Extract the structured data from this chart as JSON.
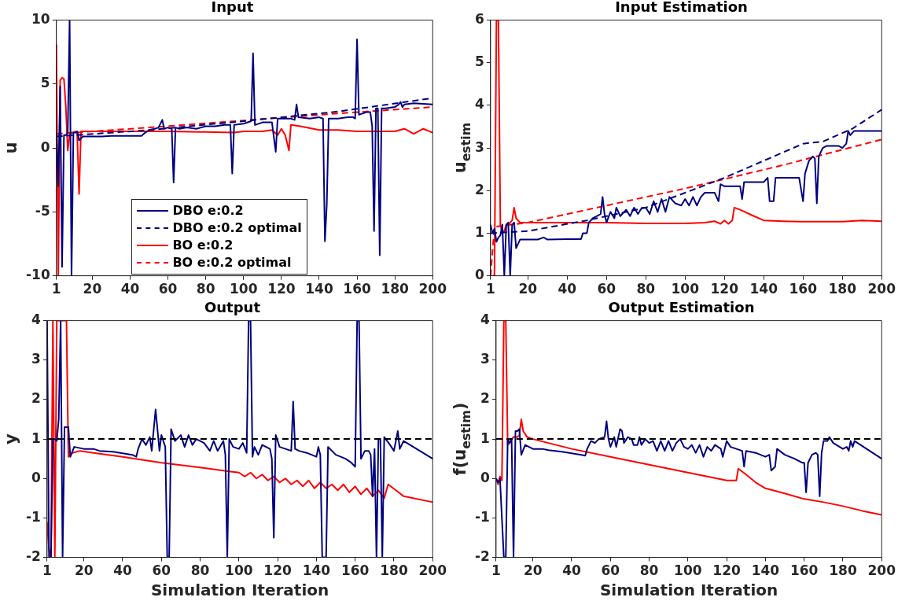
{
  "chart_data": [
    {
      "type": "line",
      "title": "Input",
      "ylabel": "u",
      "xlim": [
        1,
        200
      ],
      "xticks": [
        1,
        20,
        40,
        60,
        80,
        100,
        120,
        140,
        160,
        180,
        200
      ],
      "ylim": [
        -10,
        10
      ],
      "yticks": [
        -10,
        -5,
        0,
        5,
        10
      ],
      "legend": "bottom left",
      "series": [
        {
          "name": "DBO e:0.2",
          "color": "#000080",
          "x": [
            1,
            2,
            3,
            4,
            5,
            6,
            7,
            8,
            9,
            10,
            11,
            12,
            13,
            15,
            20,
            25,
            30,
            40,
            46,
            48,
            50,
            53,
            55,
            57,
            58,
            60,
            62,
            63,
            64,
            66,
            70,
            75,
            80,
            85,
            90,
            93,
            94,
            95,
            100,
            104,
            105,
            106,
            110,
            115,
            117,
            118,
            125,
            127,
            128,
            129,
            135,
            140,
            142,
            143,
            144,
            145,
            150,
            155,
            158,
            159,
            160,
            161,
            165,
            167,
            168,
            169,
            170,
            171,
            172,
            173,
            175,
            180,
            182,
            183,
            184,
            185,
            190,
            200
          ],
          "values": [
            1.2,
            -3,
            4.8,
            -9.3,
            1,
            1,
            1.2,
            10,
            -10,
            1.2,
            1.2,
            1.3,
            0.6,
            0.9,
            0.9,
            0.9,
            0.95,
            0.95,
            0.95,
            1.2,
            1.4,
            1.5,
            1.6,
            2.2,
            1.5,
            1.6,
            1.5,
            -2.7,
            1.6,
            1.5,
            1.6,
            1.5,
            1.7,
            1.7,
            1.8,
            1.8,
            -2,
            1.8,
            1.9,
            2.1,
            7.4,
            1.8,
            2,
            2,
            -0.3,
            2.3,
            2.3,
            2.2,
            3.4,
            2.4,
            2.3,
            2.4,
            2.3,
            -7.3,
            -4.4,
            2.3,
            2.3,
            2.4,
            2.4,
            2.3,
            8.5,
            2.6,
            2.8,
            2.8,
            1.7,
            -6.5,
            3.1,
            3.1,
            -8.4,
            3.1,
            3.1,
            3.2,
            3.4,
            3.6,
            3.2,
            3.4,
            3.5,
            3.4
          ]
        },
        {
          "name": "DBO e:0.2 optimal",
          "color": "#000080",
          "line_style": "dashed",
          "x": [
            1,
            50,
            100,
            150,
            200
          ],
          "values": [
            0.9,
            1.4,
            2.1,
            2.85,
            3.9
          ]
        },
        {
          "name": "BO e:0.2",
          "color": "#ff0000",
          "x": [
            1,
            2,
            3,
            4,
            5,
            6,
            7,
            8,
            9,
            10,
            11,
            12,
            13,
            14,
            20,
            40,
            60,
            80,
            95,
            100,
            110,
            115,
            118,
            120,
            122,
            124,
            125,
            130,
            140,
            150,
            160,
            170,
            180,
            185,
            190,
            195,
            200
          ],
          "values": [
            8.1,
            -10,
            5.3,
            5.5,
            5.4,
            3.2,
            -0.2,
            1,
            1.2,
            1.2,
            1.3,
            1.1,
            -3.6,
            1.3,
            1.3,
            1.3,
            1.3,
            1.25,
            1.2,
            1.3,
            1.3,
            1.4,
            1,
            1.5,
            1,
            -0.2,
            1.8,
            1.7,
            1.4,
            1.4,
            1.3,
            1.3,
            1.3,
            1.5,
            1.1,
            1.5,
            1.2
          ]
        },
        {
          "name": "BO e:0.2 optimal",
          "color": "#ff0000",
          "line_style": "dashed",
          "x": [
            1,
            50,
            100,
            150,
            200
          ],
          "values": [
            1.1,
            1.6,
            2.15,
            2.7,
            3.2
          ]
        }
      ]
    },
    {
      "type": "line",
      "title": "Input Estimation",
      "ylabel": "u$_{estim}$",
      "xlim": [
        1,
        200
      ],
      "xticks": [
        1,
        20,
        40,
        60,
        80,
        100,
        120,
        140,
        160,
        180,
        200
      ],
      "ylim": [
        0,
        6
      ],
      "yticks": [
        0,
        1,
        2,
        3,
        4,
        5,
        6
      ],
      "series": [
        {
          "color": "#000080",
          "x": [
            1,
            2,
            3,
            4,
            5,
            6,
            7,
            8,
            9,
            10,
            11,
            12,
            13,
            14,
            16,
            20,
            25,
            28,
            30,
            40,
            47,
            48,
            50,
            51,
            53,
            55,
            57,
            58,
            59,
            60,
            62,
            64,
            65,
            67,
            70,
            72,
            74,
            76,
            78,
            80,
            82,
            84,
            86,
            88,
            90,
            92,
            95,
            98,
            100,
            102,
            104,
            106,
            108,
            110,
            115,
            117,
            118,
            120,
            125,
            128,
            129,
            130,
            135,
            140,
            142,
            143,
            145,
            146,
            150,
            155,
            158,
            160,
            161,
            163,
            165,
            166,
            167,
            168,
            170,
            172,
            175,
            178,
            180,
            182,
            183,
            184,
            186,
            190,
            200
          ],
          "values": [
            1.2,
            1,
            1.1,
            0.8,
            0.9,
            0.95,
            1.2,
            0,
            1.2,
            1.25,
            0,
            1.2,
            1.25,
            0.65,
            0.85,
            0.85,
            0.85,
            0.9,
            0.85,
            0.86,
            0.86,
            1,
            1,
            1.25,
            1.35,
            1.4,
            1.45,
            1.85,
            1.45,
            1.25,
            1.5,
            1.35,
            1.6,
            1.4,
            1.55,
            1.4,
            1.6,
            1.45,
            1.6,
            1.6,
            1.45,
            1.75,
            1.5,
            1.8,
            1.5,
            1.85,
            1.7,
            1.65,
            1.8,
            1.65,
            1.85,
            1.65,
            1.85,
            1.95,
            1.95,
            1.75,
            2.15,
            2.1,
            2.1,
            2.1,
            1.8,
            2.2,
            2.2,
            2.2,
            2.3,
            1.75,
            1.75,
            2.3,
            2.3,
            2.3,
            2.3,
            1.75,
            2.4,
            2.7,
            2.8,
            2.75,
            1.7,
            2.8,
            3,
            3.05,
            3.05,
            3.05,
            3,
            3.1,
            3.4,
            3.3,
            3.4,
            3.4,
            3.4
          ]
        },
        {
          "color": "#000080",
          "line_style": "dashed",
          "x": [
            1,
            20,
            50,
            80,
            100,
            120,
            140,
            160,
            170,
            185,
            200
          ],
          "values": [
            1,
            1.05,
            1.3,
            1.6,
            1.95,
            2.3,
            2.7,
            3.1,
            3.15,
            3.45,
            3.9
          ]
        },
        {
          "color": "#ff0000",
          "x": [
            2,
            3,
            4,
            5,
            6,
            7,
            8,
            9,
            10,
            12,
            13,
            14,
            16,
            20,
            40,
            60,
            80,
            100,
            110,
            115,
            118,
            120,
            122,
            124,
            125,
            128,
            135,
            140,
            150,
            160,
            180,
            190,
            200
          ],
          "values": [
            0,
            0,
            6,
            6,
            1.2,
            1,
            1.05,
            1.2,
            1.2,
            1.3,
            1.6,
            1.35,
            1.25,
            1.25,
            1.25,
            1.25,
            1.23,
            1.23,
            1.25,
            1.28,
            1.22,
            1.3,
            1.22,
            1.3,
            1.6,
            1.55,
            1.4,
            1.3,
            1.28,
            1.27,
            1.27,
            1.3,
            1.28
          ]
        },
        {
          "color": "#ff0000",
          "line_style": "dashed",
          "x": [
            1,
            3,
            20,
            50,
            100,
            150,
            200
          ],
          "values": [
            0,
            1.15,
            1.25,
            1.55,
            2.05,
            2.6,
            3.2
          ]
        }
      ]
    },
    {
      "type": "line",
      "title": "Output",
      "xlabel": "Simulation Iteration",
      "ylabel": "y",
      "xlim": [
        1,
        200
      ],
      "xticks": [
        1,
        20,
        40,
        60,
        80,
        100,
        120,
        140,
        160,
        180,
        200
      ],
      "ylim": [
        -2,
        4
      ],
      "yticks": [
        -2,
        -1,
        0,
        1,
        2,
        3,
        4
      ],
      "ref_lines": [
        {
          "axis": "y",
          "value": 1,
          "color": "#000000",
          "line_style": "dashed"
        }
      ],
      "series": [
        {
          "color": "#000080",
          "x": [
            1,
            2,
            3,
            4,
            5,
            6,
            7,
            8,
            9,
            10,
            11,
            12,
            13,
            15,
            20,
            25,
            28,
            35,
            45,
            47,
            48,
            50,
            52,
            54,
            55,
            57,
            59,
            60,
            62,
            63,
            64,
            65,
            67,
            70,
            72,
            74,
            76,
            78,
            80,
            82,
            85,
            87,
            89,
            92,
            93,
            94,
            95,
            97,
            100,
            102,
            104,
            105,
            106,
            107,
            108,
            110,
            112,
            116,
            117,
            118,
            119,
            121,
            127,
            128,
            129,
            131,
            135,
            140,
            141,
            142,
            143,
            145,
            146,
            150,
            155,
            158,
            160,
            161,
            162,
            163,
            165,
            167,
            168,
            169,
            170,
            171,
            172,
            173,
            174,
            175,
            178,
            180,
            182,
            183,
            185,
            190,
            200
          ],
          "values": [
            4,
            -2,
            -2,
            1,
            1,
            0.95,
            1.5,
            4,
            -2,
            1.3,
            1.3,
            1.3,
            0.55,
            0.8,
            0.75,
            0.75,
            0.7,
            0.68,
            0.6,
            0.55,
            0.75,
            1,
            0.85,
            1.05,
            0.7,
            1.75,
            0.7,
            1.1,
            0.8,
            -2,
            -2,
            1.25,
            0.95,
            1.1,
            0.8,
            1.1,
            0.85,
            1,
            0.95,
            0.9,
            0.7,
            0.95,
            0.7,
            0.95,
            0.6,
            -2,
            1,
            0.8,
            0.75,
            0.9,
            0.65,
            4,
            4,
            0.55,
            0.8,
            0.6,
            0.85,
            0.75,
            0.5,
            -1.5,
            1.1,
            0.8,
            0.7,
            1.95,
            0.75,
            0.7,
            0.65,
            0.55,
            0.8,
            0.6,
            -2,
            -2,
            0.8,
            0.6,
            0.5,
            0.4,
            0.3,
            4,
            4,
            0.5,
            0.7,
            0.7,
            0.6,
            -0.45,
            0.75,
            -2,
            1,
            1,
            -2,
            1.05,
            0.85,
            0.7,
            1.2,
            0.75,
            0.95,
            0.8,
            0.5
          ]
        },
        {
          "color": "#ff0000",
          "x": [
            1,
            2,
            3,
            4,
            5,
            6,
            7,
            8,
            9,
            10,
            11,
            12,
            14,
            18,
            25,
            40,
            60,
            80,
            95,
            100,
            103,
            106,
            109,
            112,
            115,
            118,
            121,
            124,
            127,
            130,
            133,
            136,
            139,
            142,
            145,
            148,
            151,
            154,
            157,
            160,
            163,
            166,
            169,
            172,
            175,
            177,
            185,
            200
          ],
          "values": [
            -1.1,
            -1.8,
            -2,
            4,
            -2,
            4,
            4,
            4,
            4,
            4,
            4,
            0.55,
            0.65,
            0.7,
            0.65,
            0.55,
            0.4,
            0.28,
            0.18,
            0.15,
            0.05,
            0.15,
            0,
            0.1,
            -0.05,
            0.05,
            -0.1,
            0,
            -0.15,
            -0.05,
            -0.2,
            -0.05,
            -0.25,
            -0.1,
            -0.25,
            -0.15,
            -0.3,
            -0.15,
            -0.35,
            -0.2,
            -0.4,
            -0.25,
            -0.45,
            -0.3,
            -0.5,
            -0.15,
            -0.45,
            -0.6
          ]
        }
      ]
    },
    {
      "type": "line",
      "title": "Output Estimation",
      "xlabel": "Simulation Iteration",
      "ylabel": "f(u$_{estim}$)",
      "xlim": [
        1,
        200
      ],
      "xticks": [
        1,
        20,
        40,
        60,
        80,
        100,
        120,
        140,
        160,
        180,
        200
      ],
      "ylim": [
        -2,
        4
      ],
      "yticks": [
        -2,
        -1,
        0,
        1,
        2,
        3,
        4
      ],
      "ref_lines": [
        {
          "axis": "y",
          "value": 1,
          "color": "#000000",
          "line_style": "dashed"
        }
      ],
      "series": [
        {
          "color": "#000080",
          "x": [
            1,
            2,
            3,
            4,
            5,
            6,
            7,
            8,
            9,
            10,
            11,
            12,
            13,
            14,
            16,
            20,
            25,
            28,
            35,
            45,
            47,
            48,
            50,
            52,
            54,
            57,
            58,
            59,
            60,
            62,
            63,
            65,
            66,
            67,
            69,
            71,
            72,
            74,
            75,
            76,
            78,
            80,
            82,
            84,
            86,
            88,
            90,
            92,
            94,
            96,
            98,
            100,
            102,
            104,
            106,
            108,
            110,
            112,
            114,
            117,
            118,
            120,
            122,
            128,
            129,
            130,
            135,
            140,
            142,
            143,
            145,
            146,
            150,
            155,
            159,
            160,
            161,
            162,
            164,
            166,
            167,
            168,
            169,
            170,
            172,
            173,
            175,
            180,
            182,
            183,
            184,
            185,
            186,
            200
          ],
          "values": [
            0,
            -0.1,
            0,
            -1,
            -2,
            -2,
            1,
            0.9,
            1,
            -2,
            1.2,
            1.2,
            1.25,
            0.6,
            0.85,
            0.75,
            0.75,
            0.72,
            0.68,
            0.6,
            0.58,
            0.75,
            0.95,
            0.9,
            1,
            1.05,
            1.45,
            1,
            0.8,
            1.05,
            0.8,
            1.25,
            1.2,
            0.9,
            1.05,
            1,
            0.85,
            0.85,
            1.05,
            0.85,
            1,
            0.9,
            0.95,
            0.7,
            0.95,
            0.7,
            0.95,
            0.7,
            0.9,
            1,
            0.8,
            0.75,
            0.85,
            0.65,
            0.85,
            0.55,
            0.8,
            0.7,
            0.85,
            0.75,
            0.55,
            0.95,
            0.8,
            0.7,
            0.3,
            0.7,
            0.65,
            0.55,
            0.6,
            0.2,
            0.3,
            0.75,
            0.6,
            0.5,
            0.4,
            0.4,
            -0.35,
            0.4,
            0.6,
            0.65,
            0.6,
            -0.45,
            0.65,
            0.95,
            0.95,
            1.05,
            0.9,
            0.75,
            0.8,
            0.7,
            0.95,
            0.8,
            0.95,
            0.5
          ]
        },
        {
          "color": "#ff0000",
          "x": [
            1,
            2,
            3,
            4,
            5,
            6,
            7,
            8,
            9,
            10,
            12,
            13,
            14,
            15,
            17,
            20,
            40,
            60,
            80,
            100,
            110,
            120,
            125,
            126,
            130,
            135,
            140,
            150,
            160,
            170,
            180,
            190,
            200
          ],
          "values": [
            0,
            -0.15,
            0.05,
            -0.05,
            4,
            4,
            0.85,
            0.9,
            1,
            1.05,
            1.05,
            1.1,
            1.5,
            1.2,
            1.05,
            1,
            0.75,
            0.55,
            0.35,
            0.15,
            0.05,
            -0.05,
            -0.05,
            0.25,
            0.1,
            -0.1,
            -0.25,
            -0.38,
            -0.52,
            -0.6,
            -0.7,
            -0.82,
            -0.92
          ]
        }
      ]
    }
  ]
}
